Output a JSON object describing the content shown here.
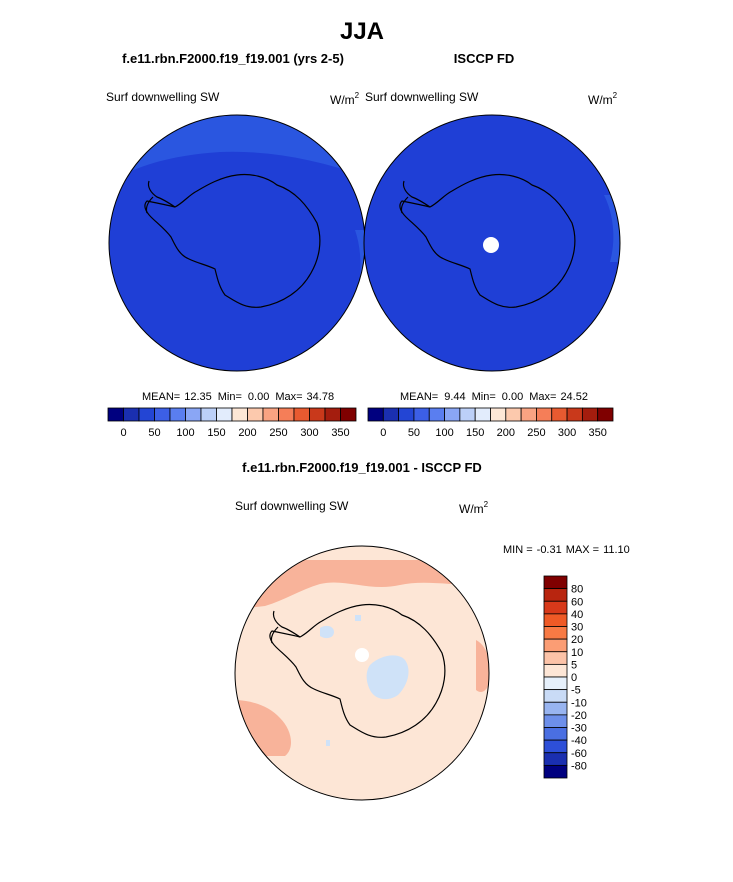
{
  "title": "JJA",
  "colors": {
    "deep_blue": "#1f3fd6",
    "ocean_blue": "#2a56e0",
    "diff_bg": "#fde6d6",
    "diff_pink": "#f8b39a",
    "diff_light_blue": "#cfe2f8",
    "coast": "#000000"
  },
  "panels": [
    {
      "case_title": "f.e11.rbn.F2000.f19_f19.001 (yrs 2-5)",
      "var_label": "Surf downwelling SW",
      "units": "W/m",
      "units_exp": "2",
      "stats": {
        "mean_label": "MEAN=",
        "mean": "12.35",
        "min_label": "Min=",
        "min": "0.00",
        "max_label": "Max=",
        "max": "34.78"
      },
      "has_pole_hole": false
    },
    {
      "case_title": "ISCCP FD",
      "var_label": "Surf downwelling SW",
      "units": "W/m",
      "units_exp": "2",
      "stats": {
        "mean_label": "MEAN=",
        "mean": "9.44",
        "min_label": "Min=",
        "min": "0.00",
        "max_label": "Max=",
        "max": "24.52"
      },
      "has_pole_hole": true
    }
  ],
  "diff_panel": {
    "case_title": "f.e11.rbn.F2000.f19_f19.001 - ISCCP FD",
    "var_label": "Surf downwelling SW",
    "units": "W/m",
    "units_exp": "2",
    "minmax": {
      "min_label": "MIN =",
      "min": "-0.31",
      "max_label": "MAX =",
      "max": "11.10"
    }
  },
  "chart_data": [
    {
      "type": "heatmap",
      "name_ref": "model",
      "colorbar": {
        "orientation": "horizontal",
        "colors": [
          "#00007f",
          "#1a2fb0",
          "#2345d4",
          "#3c5fe6",
          "#5a7ef0",
          "#8aa6f5",
          "#bcd0f8",
          "#e2ecfc",
          "#fde7d6",
          "#fcc9ad",
          "#f9a382",
          "#f57e58",
          "#e85a30",
          "#c9391b",
          "#a41d0e",
          "#7f0000"
        ],
        "tick_labels": [
          "0",
          "50",
          "100",
          "150",
          "200",
          "250",
          "300",
          "350"
        ]
      }
    },
    {
      "type": "heatmap",
      "name_ref": "obs",
      "colorbar": {
        "orientation": "horizontal",
        "colors": [
          "#00007f",
          "#1a2fb0",
          "#2345d4",
          "#3c5fe6",
          "#5a7ef0",
          "#8aa6f5",
          "#bcd0f8",
          "#e2ecfc",
          "#fde7d6",
          "#fcc9ad",
          "#f9a382",
          "#f57e58",
          "#e85a30",
          "#c9391b",
          "#a41d0e",
          "#7f0000"
        ],
        "tick_labels": [
          "0",
          "50",
          "100",
          "150",
          "200",
          "250",
          "300",
          "350"
        ]
      }
    },
    {
      "type": "heatmap",
      "name_ref": "difference",
      "colorbar": {
        "orientation": "vertical",
        "colors": [
          "#7f0000",
          "#b8250f",
          "#d8391a",
          "#ef5a26",
          "#f87a44",
          "#fb9d74",
          "#fcc3a8",
          "#fde6d6",
          "#e6f0fb",
          "#c9dbf6",
          "#98b4f0",
          "#6d8fea",
          "#4a6fe2",
          "#2d4fd8",
          "#1a2fb0",
          "#00007f"
        ],
        "tick_labels": [
          "80",
          "60",
          "40",
          "30",
          "20",
          "10",
          "5",
          "0",
          "-5",
          "-10",
          "-20",
          "-30",
          "-40",
          "-60",
          "-80"
        ]
      }
    }
  ]
}
